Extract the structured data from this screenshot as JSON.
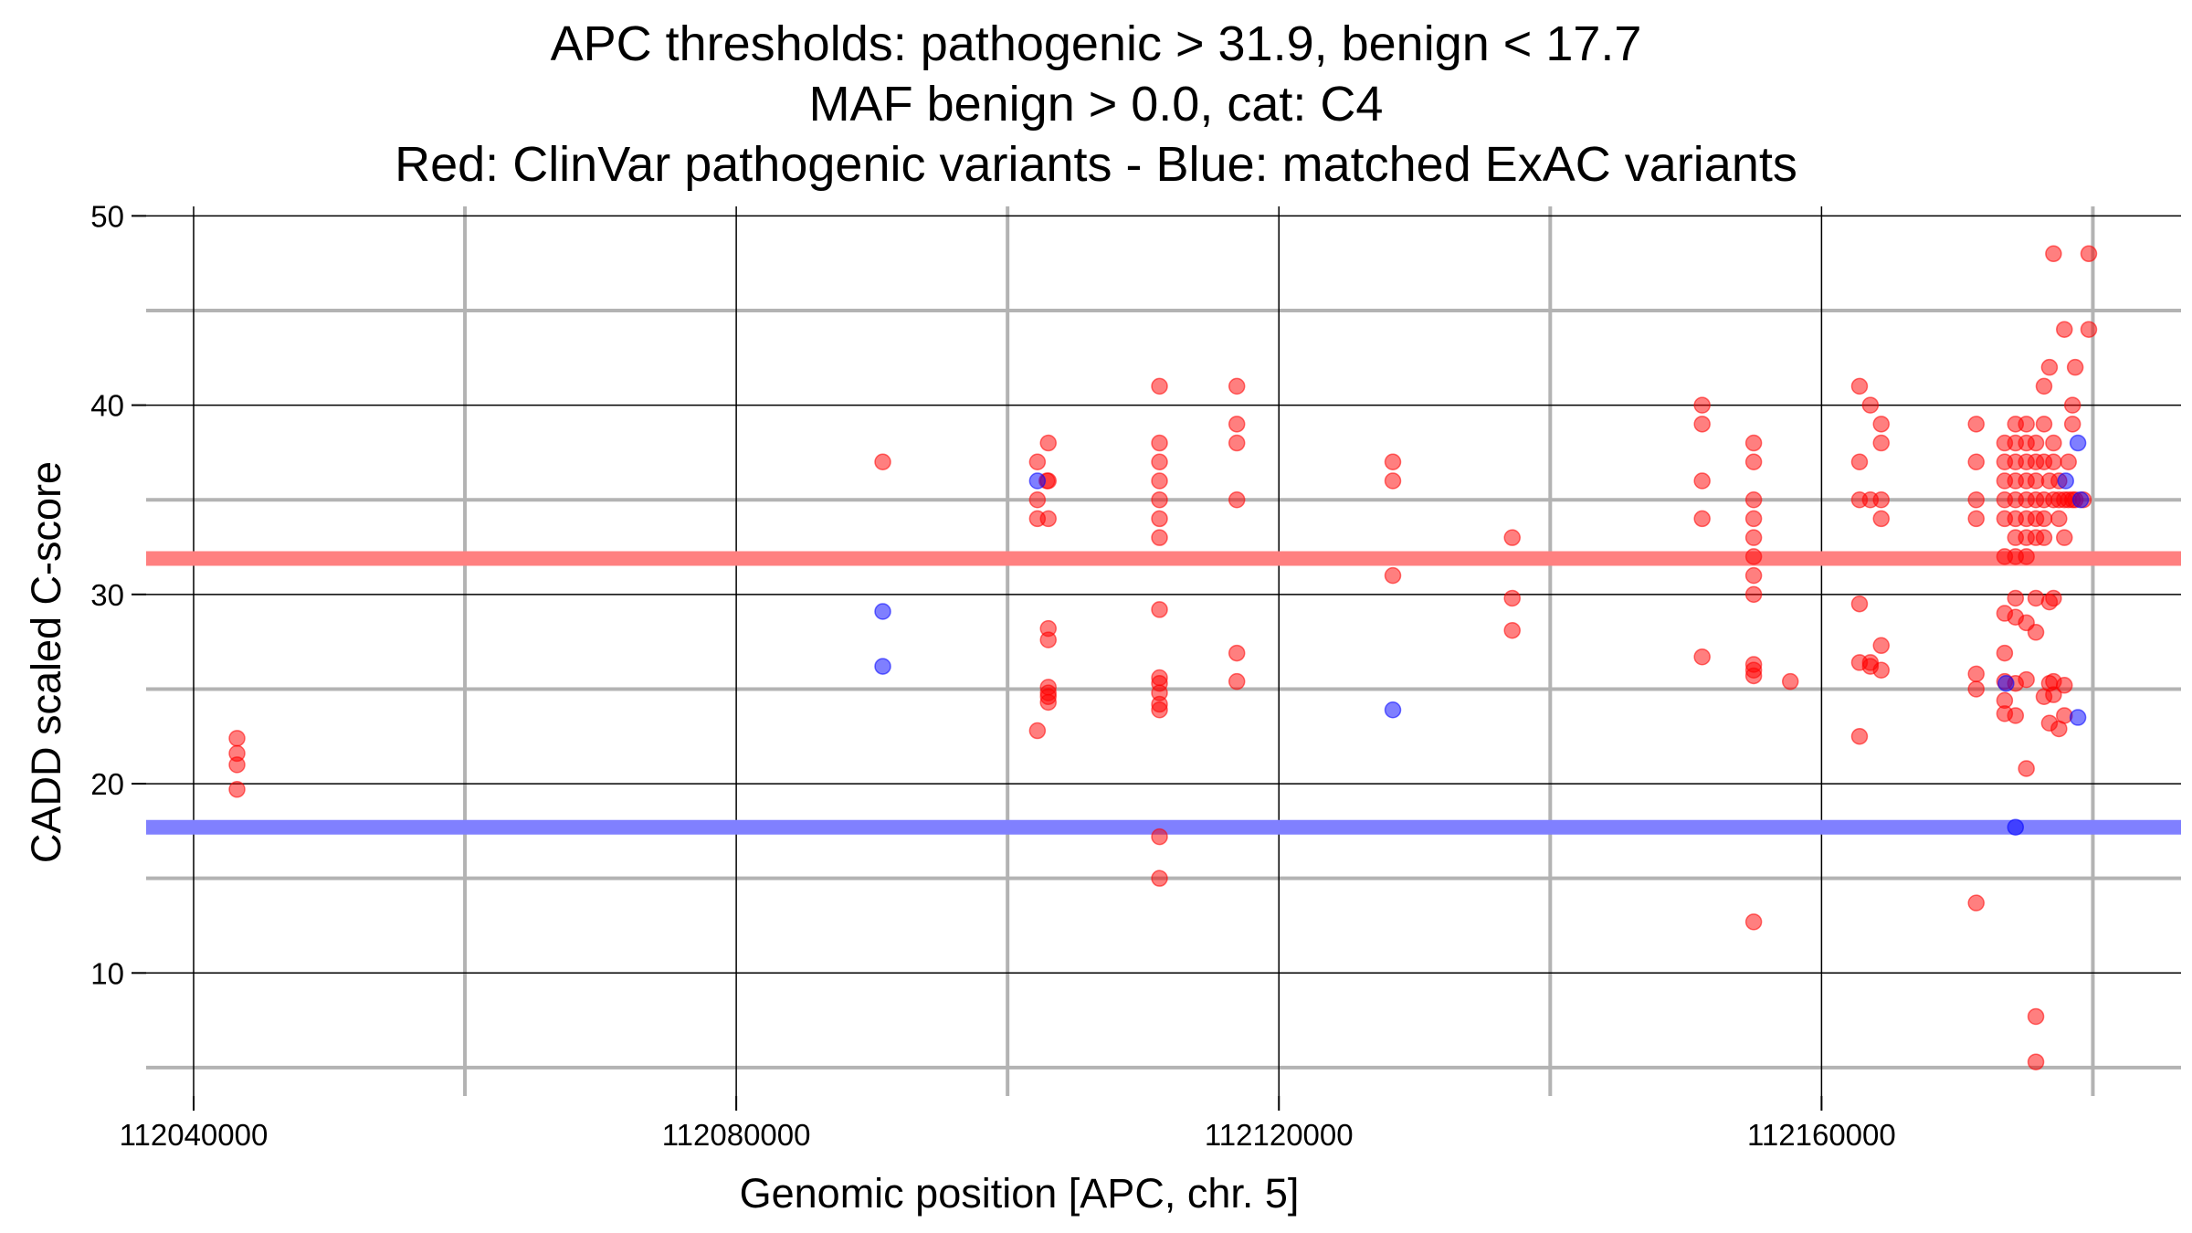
{
  "chart_data": {
    "type": "scatter",
    "title_lines": [
      "APC thresholds: pathogenic > 31.9, benign < 17.7",
      "MAF benign > 0.0, cat: C4",
      "Red: ClinVar pathogenic variants - Blue: matched ExAC variants"
    ],
    "xlabel": "Genomic position [APC, chr. 5]",
    "ylabel": "CADD scaled C-score",
    "xlim": [
      112036500,
      112186500
    ],
    "ylim": [
      3.5,
      50.5
    ],
    "x_ticks": [
      112040000,
      112080000,
      112120000,
      112160000
    ],
    "y_ticks": [
      10,
      20,
      30,
      40,
      50
    ],
    "major_x_grid": [
      112040000,
      112080000,
      112120000,
      112160000
    ],
    "minor_x_grid": [
      112060000,
      112100000,
      112140000,
      112180000
    ],
    "major_y_grid": [
      10,
      20,
      30,
      40,
      50
    ],
    "minor_y_grid": [
      5,
      15,
      25,
      35,
      45
    ],
    "thresholds": [
      {
        "name": "pathogenic",
        "value": 31.9,
        "color": "#ff8080"
      },
      {
        "name": "benign",
        "value": 17.7,
        "color": "#8080ff"
      }
    ],
    "colors": {
      "pathogenic": "#ff0000",
      "benign": "#0000ff"
    },
    "series": [
      {
        "name": "ClinVar pathogenic variants",
        "color": "#ff0000",
        "points": [
          [
            112043200,
            22.4
          ],
          [
            112043200,
            21.6
          ],
          [
            112043200,
            21.0
          ],
          [
            112043200,
            19.7
          ],
          [
            112090800,
            37.0
          ],
          [
            112102200,
            37.0
          ],
          [
            112102200,
            35.0
          ],
          [
            112102200,
            34.0
          ],
          [
            112102200,
            22.8
          ],
          [
            112102900,
            36.0
          ],
          [
            112103000,
            38.0
          ],
          [
            112103000,
            36.0
          ],
          [
            112103000,
            34.0
          ],
          [
            112103000,
            28.2
          ],
          [
            112103000,
            27.6
          ],
          [
            112103000,
            25.1
          ],
          [
            112103000,
            24.8
          ],
          [
            112103000,
            24.6
          ],
          [
            112103000,
            24.3
          ],
          [
            112111200,
            41.0
          ],
          [
            112111200,
            38.0
          ],
          [
            112111200,
            37.0
          ],
          [
            112111200,
            36.0
          ],
          [
            112111200,
            35.0
          ],
          [
            112111200,
            34.0
          ],
          [
            112111200,
            33.0
          ],
          [
            112111200,
            29.2
          ],
          [
            112111200,
            25.6
          ],
          [
            112111200,
            25.3
          ],
          [
            112111200,
            24.8
          ],
          [
            112111200,
            24.2
          ],
          [
            112111200,
            23.9
          ],
          [
            112111200,
            17.2
          ],
          [
            112111200,
            15.0
          ],
          [
            112116900,
            41.0
          ],
          [
            112116900,
            39.0
          ],
          [
            112116900,
            38.0
          ],
          [
            112116900,
            35.0
          ],
          [
            112116900,
            26.9
          ],
          [
            112116900,
            25.4
          ],
          [
            112128400,
            37.0
          ],
          [
            112128400,
            36.0
          ],
          [
            112128400,
            31.0
          ],
          [
            112137200,
            33.0
          ],
          [
            112137200,
            29.8
          ],
          [
            112137200,
            28.1
          ],
          [
            112151200,
            40.0
          ],
          [
            112151200,
            39.0
          ],
          [
            112151200,
            36.0
          ],
          [
            112151200,
            34.0
          ],
          [
            112151200,
            26.7
          ],
          [
            112155000,
            38.0
          ],
          [
            112155000,
            37.0
          ],
          [
            112155000,
            35.0
          ],
          [
            112155000,
            34.0
          ],
          [
            112155000,
            33.0
          ],
          [
            112155000,
            32.0
          ],
          [
            112155000,
            31.0
          ],
          [
            112155000,
            30.0
          ],
          [
            112155000,
            26.3
          ],
          [
            112155000,
            26.0
          ],
          [
            112155000,
            25.7
          ],
          [
            112155000,
            12.7
          ],
          [
            112157700,
            25.4
          ],
          [
            112162800,
            41.0
          ],
          [
            112162800,
            37.0
          ],
          [
            112162800,
            35.0
          ],
          [
            112162800,
            29.5
          ],
          [
            112162800,
            26.4
          ],
          [
            112162800,
            22.5
          ],
          [
            112163600,
            40.0
          ],
          [
            112163600,
            35.0
          ],
          [
            112163600,
            26.4
          ],
          [
            112163600,
            26.2
          ],
          [
            112164400,
            39.0
          ],
          [
            112164400,
            38.0
          ],
          [
            112164400,
            35.0
          ],
          [
            112164400,
            34.0
          ],
          [
            112164400,
            27.3
          ],
          [
            112164400,
            26.0
          ],
          [
            112171400,
            39.0
          ],
          [
            112171400,
            37.0
          ],
          [
            112171400,
            35.0
          ],
          [
            112171400,
            34.0
          ],
          [
            112171400,
            25.8
          ],
          [
            112171400,
            25.0
          ],
          [
            112171400,
            13.7
          ],
          [
            112173500,
            38.0
          ],
          [
            112173500,
            37.0
          ],
          [
            112173500,
            36.0
          ],
          [
            112173500,
            35.0
          ],
          [
            112173500,
            34.0
          ],
          [
            112173500,
            32.0
          ],
          [
            112173500,
            29.0
          ],
          [
            112173500,
            26.9
          ],
          [
            112173500,
            25.4
          ],
          [
            112173500,
            24.4
          ],
          [
            112173500,
            23.7
          ],
          [
            112174300,
            39.0
          ],
          [
            112174300,
            38.0
          ],
          [
            112174300,
            37.0
          ],
          [
            112174300,
            36.0
          ],
          [
            112174300,
            35.0
          ],
          [
            112174300,
            34.0
          ],
          [
            112174300,
            33.0
          ],
          [
            112174300,
            32.0
          ],
          [
            112174300,
            29.8
          ],
          [
            112174300,
            28.8
          ],
          [
            112174300,
            25.3
          ],
          [
            112174300,
            23.6
          ],
          [
            112175100,
            39.0
          ],
          [
            112175100,
            38.0
          ],
          [
            112175100,
            37.0
          ],
          [
            112175100,
            36.0
          ],
          [
            112175100,
            35.0
          ],
          [
            112175100,
            34.0
          ],
          [
            112175100,
            33.0
          ],
          [
            112175100,
            32.0
          ],
          [
            112175100,
            28.5
          ],
          [
            112175100,
            25.5
          ],
          [
            112175100,
            20.8
          ],
          [
            112175800,
            38.0
          ],
          [
            112175800,
            37.0
          ],
          [
            112175800,
            36.0
          ],
          [
            112175800,
            35.0
          ],
          [
            112175800,
            34.0
          ],
          [
            112175800,
            33.0
          ],
          [
            112175800,
            29.8
          ],
          [
            112175800,
            28.0
          ],
          [
            112175800,
            7.7
          ],
          [
            112175800,
            5.3
          ],
          [
            112176400,
            41.0
          ],
          [
            112176400,
            39.0
          ],
          [
            112176400,
            37.0
          ],
          [
            112176400,
            35.0
          ],
          [
            112176400,
            34.0
          ],
          [
            112176400,
            33.0
          ],
          [
            112176400,
            24.6
          ],
          [
            112176800,
            42.0
          ],
          [
            112176800,
            36.0
          ],
          [
            112176800,
            29.6
          ],
          [
            112176800,
            25.3
          ],
          [
            112176800,
            23.2
          ],
          [
            112177100,
            48.0
          ],
          [
            112177100,
            38.0
          ],
          [
            112177100,
            37.0
          ],
          [
            112177100,
            35.0
          ],
          [
            112177100,
            29.8
          ],
          [
            112177100,
            25.4
          ],
          [
            112177100,
            24.7
          ],
          [
            112177500,
            36.0
          ],
          [
            112177500,
            35.0
          ],
          [
            112177500,
            34.0
          ],
          [
            112177500,
            22.9
          ],
          [
            112177900,
            44.0
          ],
          [
            112177900,
            35.0
          ],
          [
            112177900,
            33.0
          ],
          [
            112177900,
            25.2
          ],
          [
            112177900,
            23.6
          ],
          [
            112178200,
            37.0
          ],
          [
            112178200,
            35.0
          ],
          [
            112178500,
            40.0
          ],
          [
            112178500,
            39.0
          ],
          [
            112178500,
            35.0
          ],
          [
            112178700,
            42.0
          ],
          [
            112178700,
            35.0
          ],
          [
            112179300,
            35.0
          ],
          [
            112179700,
            48.0
          ],
          [
            112179700,
            44.0
          ]
        ]
      },
      {
        "name": "matched ExAC variants",
        "color": "#0000ff",
        "points": [
          [
            112090800,
            29.1
          ],
          [
            112090800,
            26.2
          ],
          [
            112102200,
            36.0
          ],
          [
            112128400,
            23.9
          ],
          [
            112173600,
            25.3
          ],
          [
            112174300,
            17.7
          ],
          [
            112178000,
            36.0
          ],
          [
            112178900,
            38.0
          ],
          [
            112178900,
            23.5
          ],
          [
            112179100,
            35.0
          ]
        ]
      }
    ]
  }
}
